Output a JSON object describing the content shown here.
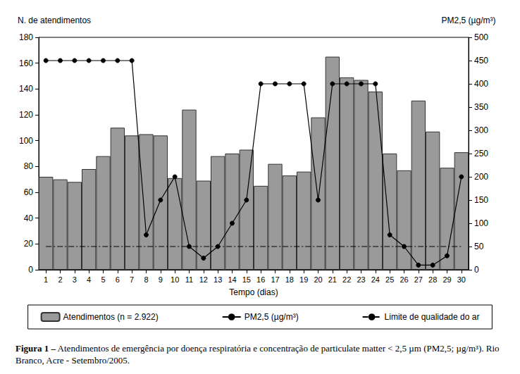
{
  "chart_data": {
    "type": "bar",
    "ylabel": "N. de atendimentos",
    "y2label": "PM2,5 (µg/m³)",
    "xlabel": "Tempo (dias)",
    "caption_label": "Figura 1 –",
    "caption": "Atendimentos de emergência por doença respiratória e concentração de particulate matter < 2,5 µm (PM2,5; µg/m³). Rio Branco, Acre - Setembro/2005.",
    "categories": [
      "1",
      "2",
      "3",
      "4",
      "5",
      "6",
      "7",
      "8",
      "9",
      "10",
      "11",
      "12",
      "13",
      "14",
      "15",
      "16",
      "17",
      "18",
      "19",
      "20",
      "21",
      "22",
      "23",
      "24",
      "25",
      "26",
      "27",
      "28",
      "29",
      "30"
    ],
    "series": [
      {
        "name": "Atendimentos (n = 2.922)",
        "type": "bar",
        "color": "#9a9a9a",
        "values": [
          72,
          70,
          68,
          78,
          88,
          110,
          104,
          105,
          104,
          71,
          124,
          69,
          88,
          90,
          93,
          65,
          82,
          73,
          76,
          118,
          165,
          149,
          147,
          138,
          90,
          77,
          131,
          107,
          79,
          91
        ]
      },
      {
        "name": "PM2,5 (µg/m³)",
        "type": "line",
        "axis": "y2",
        "color": "#000000",
        "marker": "circle",
        "values": [
          450,
          450,
          450,
          450,
          450,
          450,
          450,
          75,
          150,
          200,
          50,
          25,
          50,
          100,
          150,
          400,
          400,
          400,
          400,
          150,
          400,
          400,
          400,
          400,
          75,
          50,
          10,
          10,
          30,
          200
        ]
      },
      {
        "name": "Limite de qualidade do ar",
        "type": "line",
        "axis": "y2",
        "color": "#000000",
        "marker": "none",
        "line_style": "dashdot",
        "values": [
          50,
          50,
          50,
          50,
          50,
          50,
          50,
          50,
          50,
          50,
          50,
          50,
          50,
          50,
          50,
          50,
          50,
          50,
          50,
          50,
          50,
          50,
          50,
          50,
          50,
          50,
          50,
          50,
          50,
          50
        ]
      }
    ],
    "ylim": [
      0,
      180
    ],
    "yticks": [
      0,
      20,
      40,
      60,
      80,
      100,
      120,
      140,
      160,
      180
    ],
    "y2lim": [
      0,
      500
    ],
    "y2ticks": [
      0,
      50,
      100,
      150,
      200,
      250,
      300,
      350,
      400,
      450,
      500
    ],
    "grid": false,
    "legend": "bottom"
  }
}
